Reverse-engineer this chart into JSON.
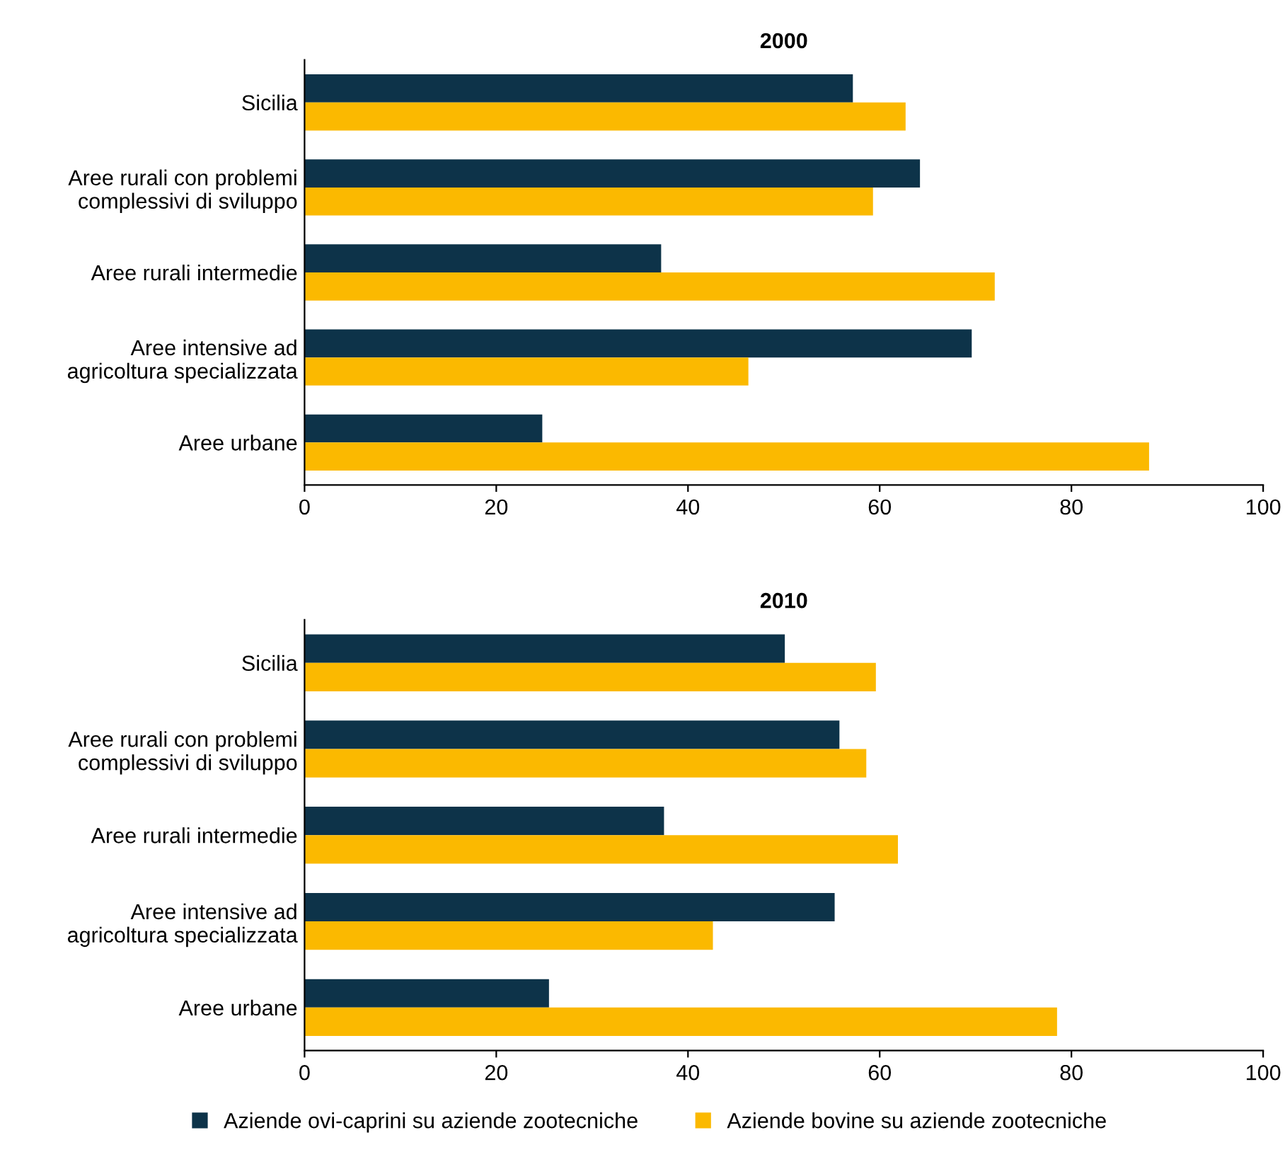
{
  "chart_data": [
    {
      "type": "bar",
      "orientation": "horizontal",
      "title": "2000",
      "categories": [
        "Sicilia",
        "Aree rurali con problemi\ncomplessivi di sviluppo",
        "Aree rurali intermedie",
        "Aree intensive ad\nagricoltura specializzata",
        "Aree urbane"
      ],
      "series": [
        {
          "color": "#0d3349",
          "values": [
            57.2,
            64.2,
            37.2,
            69.6,
            24.8
          ]
        },
        {
          "color": "#fbb900",
          "values": [
            62.7,
            59.3,
            72.0,
            46.3,
            88.1
          ]
        }
      ],
      "xlim": [
        0,
        100
      ],
      "xticks": [
        0,
        20,
        40,
        60,
        80,
        100
      ],
      "grid": false
    },
    {
      "type": "bar",
      "orientation": "horizontal",
      "title": "2010",
      "categories": [
        "Sicilia",
        "Aree rurali con problemi\ncomplessivi di sviluppo",
        "Aree rurali intermedie",
        "Aree intensive ad\nagricoltura specializzata",
        "Aree urbane"
      ],
      "series": [
        {
          "name": "Aziende ovi-caprini su aziende zootecniche",
          "color": "#0d3349",
          "values": [
            50.1,
            55.8,
            37.5,
            55.3,
            25.5
          ]
        },
        {
          "name": "Aziende bovine su aziende zootecniche",
          "color": "#fbb900",
          "values": [
            59.6,
            58.6,
            61.9,
            42.6,
            78.5
          ]
        }
      ],
      "xlim": [
        0,
        100
      ],
      "xticks": [
        0,
        20,
        40,
        60,
        80,
        100
      ],
      "grid": false,
      "legend": "bottom"
    }
  ]
}
